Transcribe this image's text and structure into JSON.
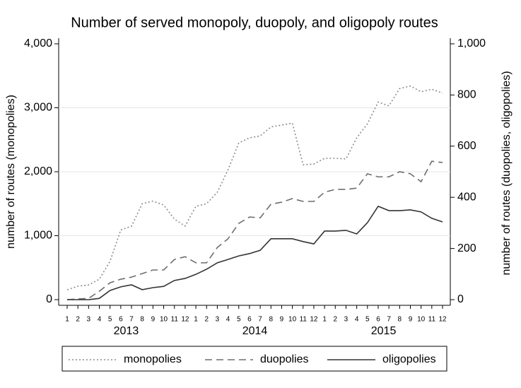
{
  "chart_data": {
    "type": "line",
    "title": "Number of served monopoly, duopoly, and oligopoly routes",
    "y_label": "number of routes (monopolies)",
    "y2_label": "number of routes (duopolies, oligopolies)",
    "categories": [
      "1",
      "2",
      "3",
      "4",
      "5",
      "6",
      "7",
      "8",
      "9",
      "10",
      "11",
      "12",
      "1",
      "2",
      "3",
      "4",
      "5",
      "6",
      "7",
      "8",
      "9",
      "10",
      "11",
      "12",
      "1",
      "2",
      "3",
      "4",
      "5",
      "6",
      "7",
      "8",
      "9",
      "10",
      "11",
      "12"
    ],
    "year_labels": [
      "2013",
      "2014",
      "2015"
    ],
    "ylim": [
      0,
      4000
    ],
    "yticks": [
      0,
      {
        "value": 1000,
        "label": "1,000"
      },
      {
        "value": 2000,
        "label": "2,000"
      },
      {
        "value": 3000,
        "label": "3,000"
      },
      {
        "value": 4000,
        "label": "4,000"
      }
    ],
    "y2lim": [
      0,
      1000
    ],
    "y2ticks": [
      0,
      200,
      400,
      600,
      800,
      {
        "value": 1000,
        "label": "1,000"
      }
    ],
    "grid": true,
    "legend": "bottom",
    "series": [
      {
        "name": "monopolies",
        "color": "#8c8c8c",
        "dash": "dotted",
        "values": [
          155,
          210,
          230,
          320,
          600,
          1090,
          1150,
          1500,
          1540,
          1480,
          1260,
          1150,
          1460,
          1500,
          1680,
          2030,
          2450,
          2530,
          2560,
          2700,
          2730,
          2760,
          2110,
          2120,
          2210,
          2210,
          2200,
          2530,
          2750,
          3090,
          3030,
          3300,
          3340,
          3250,
          3290,
          3230
        ]
      },
      {
        "name": "duopolies",
        "color": "#6e6e6e",
        "dash": "dashed",
        "axis": "y2",
        "values": [
          0,
          3,
          5,
          33,
          66,
          80,
          88,
          102,
          116,
          116,
          157,
          168,
          144,
          144,
          204,
          238,
          298,
          323,
          320,
          373,
          381,
          395,
          384,
          384,
          420,
          431,
          431,
          436,
          492,
          480,
          480,
          500,
          492,
          461,
          541,
          536
        ]
      },
      {
        "name": "oligopolies",
        "color": "#333333",
        "dash": "solid",
        "axis": "y2",
        "values": [
          0,
          0,
          0,
          5,
          36,
          50,
          58,
          39,
          47,
          52,
          75,
          83,
          99,
          119,
          144,
          157,
          171,
          180,
          193,
          238,
          238,
          238,
          227,
          218,
          268,
          268,
          271,
          257,
          301,
          365,
          348,
          348,
          351,
          343,
          318,
          304
        ]
      }
    ]
  }
}
